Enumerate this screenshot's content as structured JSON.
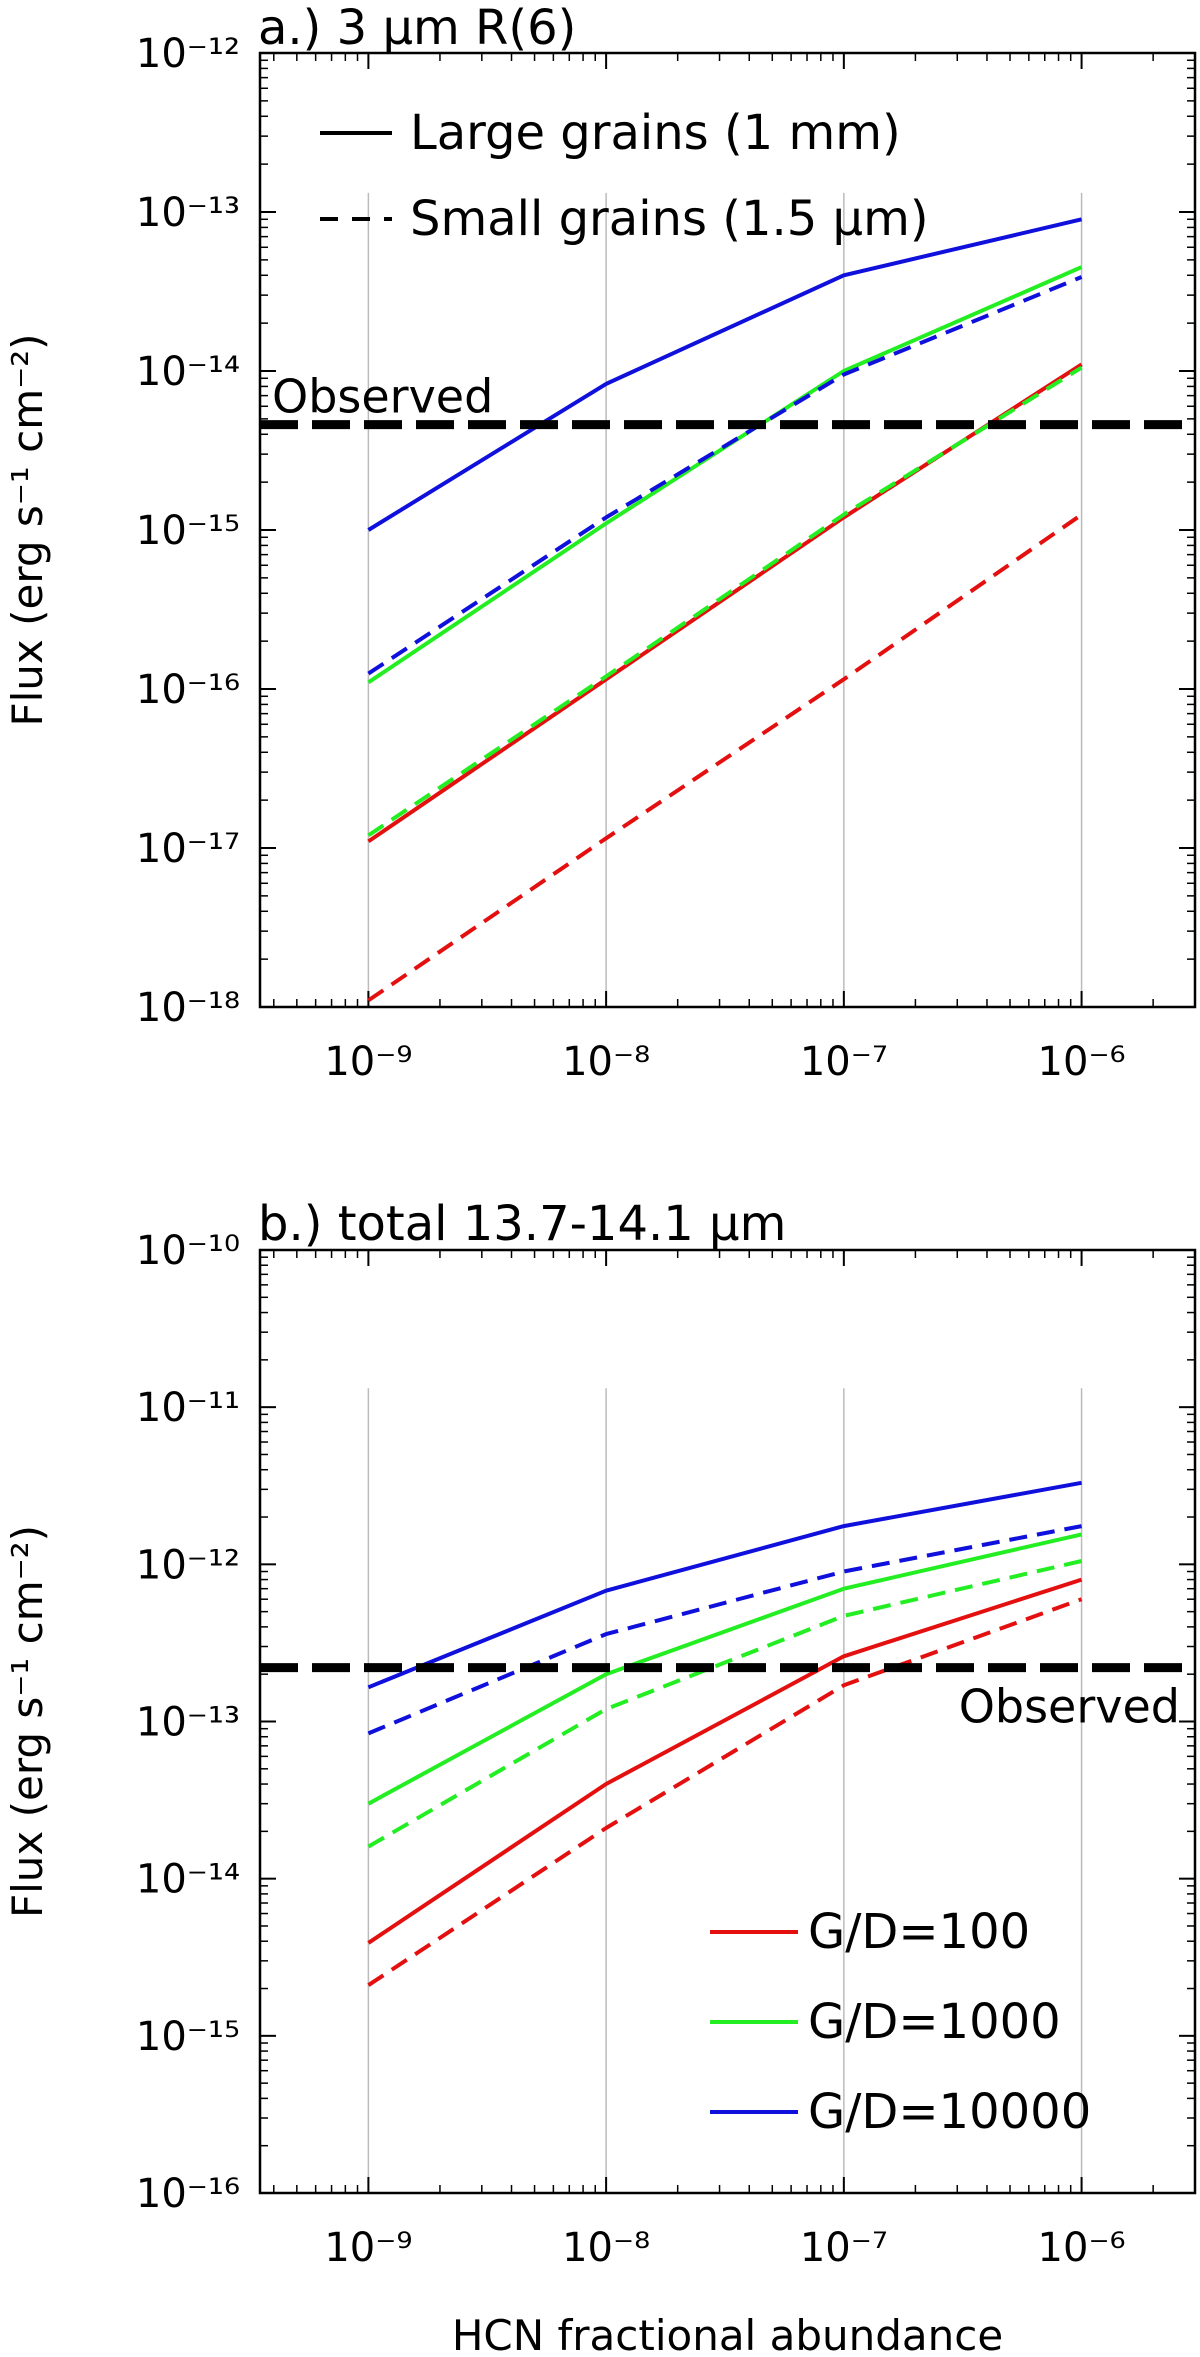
{
  "colors": {
    "g100": "#e41010",
    "g1000": "#22ee22",
    "g10000": "#1010dd",
    "observed": "#000000",
    "grid": "#bbbbbb"
  },
  "chart_data": [
    {
      "type": "line",
      "panel": "a",
      "title": "a.) 3 μm R(6)",
      "xlabel": "",
      "ylabel": "Flux (erg s⁻¹ cm⁻²)",
      "xscale": "log",
      "yscale": "log",
      "xlim": [
        3.5e-10,
        3e-06
      ],
      "ylim": [
        1e-18,
        1e-12
      ],
      "x": [
        1e-09,
        1e-08,
        1e-07,
        1e-06
      ],
      "xtick_labels": [
        "10⁻⁹",
        "10⁻⁸",
        "10⁻⁷",
        "10⁻⁶"
      ],
      "ytick_labels": [
        "10⁻¹⁸",
        "10⁻¹⁷",
        "10⁻¹⁶",
        "10⁻¹⁵",
        "10⁻¹⁴",
        "10⁻¹³",
        "10⁻¹²"
      ],
      "grid": "vertical lines at data x values",
      "legend": {
        "placement": "top-left",
        "entries": [
          "Large grains (1 mm)",
          "Small grains (1.5 μm)"
        ]
      },
      "observed": {
        "label": "Observed",
        "value": 4.6e-15
      },
      "series": [
        {
          "name": "G/D=100, large grains",
          "style": "solid",
          "color": "g100",
          "values": [
            1.1e-17,
            1.15e-16,
            1.2e-15,
            1.1e-14
          ]
        },
        {
          "name": "G/D=100, small grains",
          "style": "dashed",
          "color": "g100",
          "values": [
            1.1e-18,
            1.15e-17,
            1.15e-16,
            1.25e-15
          ]
        },
        {
          "name": "G/D=1000, large grains",
          "style": "solid",
          "color": "g1000",
          "values": [
            1.1e-16,
            1.1e-15,
            1e-14,
            4.5e-14
          ]
        },
        {
          "name": "G/D=1000, small grains",
          "style": "dashed",
          "color": "g1000",
          "values": [
            1.2e-17,
            1.2e-16,
            1.25e-15,
            1.05e-14
          ]
        },
        {
          "name": "G/D=10000, large grains",
          "style": "solid",
          "color": "g10000",
          "values": [
            1e-15,
            8.3e-15,
            4e-14,
            9e-14
          ]
        },
        {
          "name": "G/D=10000, small grains",
          "style": "dashed",
          "color": "g10000",
          "values": [
            1.25e-16,
            1.2e-15,
            9.5e-15,
            3.9e-14
          ]
        }
      ]
    },
    {
      "type": "line",
      "panel": "b",
      "title": "b.) total 13.7-14.1 μm",
      "xlabel": "HCN fractional abundance",
      "ylabel": "Flux (erg s⁻¹ cm⁻²)",
      "xscale": "log",
      "yscale": "log",
      "xlim": [
        3.5e-10,
        3e-06
      ],
      "ylim": [
        1e-16,
        1e-10
      ],
      "x": [
        1e-09,
        1e-08,
        1e-07,
        1e-06
      ],
      "xtick_labels": [
        "10⁻⁹",
        "10⁻⁸",
        "10⁻⁷",
        "10⁻⁶"
      ],
      "ytick_labels": [
        "10⁻¹⁶",
        "10⁻¹⁵",
        "10⁻¹⁴",
        "10⁻¹³",
        "10⁻¹²",
        "10⁻¹¹",
        "10⁻¹⁰"
      ],
      "grid": "vertical lines at data x values",
      "legend": {
        "placement": "bottom-right",
        "entries": [
          "G/D=100",
          "G/D=1000",
          "G/D=10000"
        ]
      },
      "observed": {
        "label": "Observed",
        "value": 2.2e-13
      },
      "series": [
        {
          "name": "G/D=100, large grains",
          "style": "solid",
          "color": "g100",
          "values": [
            3.9e-15,
            4e-14,
            2.6e-13,
            8e-13
          ]
        },
        {
          "name": "G/D=100, small grains",
          "style": "dashed",
          "color": "g100",
          "values": [
            2.1e-15,
            2.1e-14,
            1.7e-13,
            6e-13
          ]
        },
        {
          "name": "G/D=1000, large grains",
          "style": "solid",
          "color": "g1000",
          "values": [
            3e-14,
            2e-13,
            7e-13,
            1.55e-12
          ]
        },
        {
          "name": "G/D=1000, small grains",
          "style": "dashed",
          "color": "g1000",
          "values": [
            1.6e-14,
            1.2e-13,
            4.7e-13,
            1.05e-12
          ]
        },
        {
          "name": "G/D=10000, large grains",
          "style": "solid",
          "color": "g10000",
          "values": [
            1.65e-13,
            6.8e-13,
            1.75e-12,
            3.3e-12
          ]
        },
        {
          "name": "G/D=10000, small grains",
          "style": "dashed",
          "color": "g10000",
          "values": [
            8.4e-14,
            3.6e-13,
            9e-13,
            1.75e-12
          ]
        }
      ]
    }
  ]
}
